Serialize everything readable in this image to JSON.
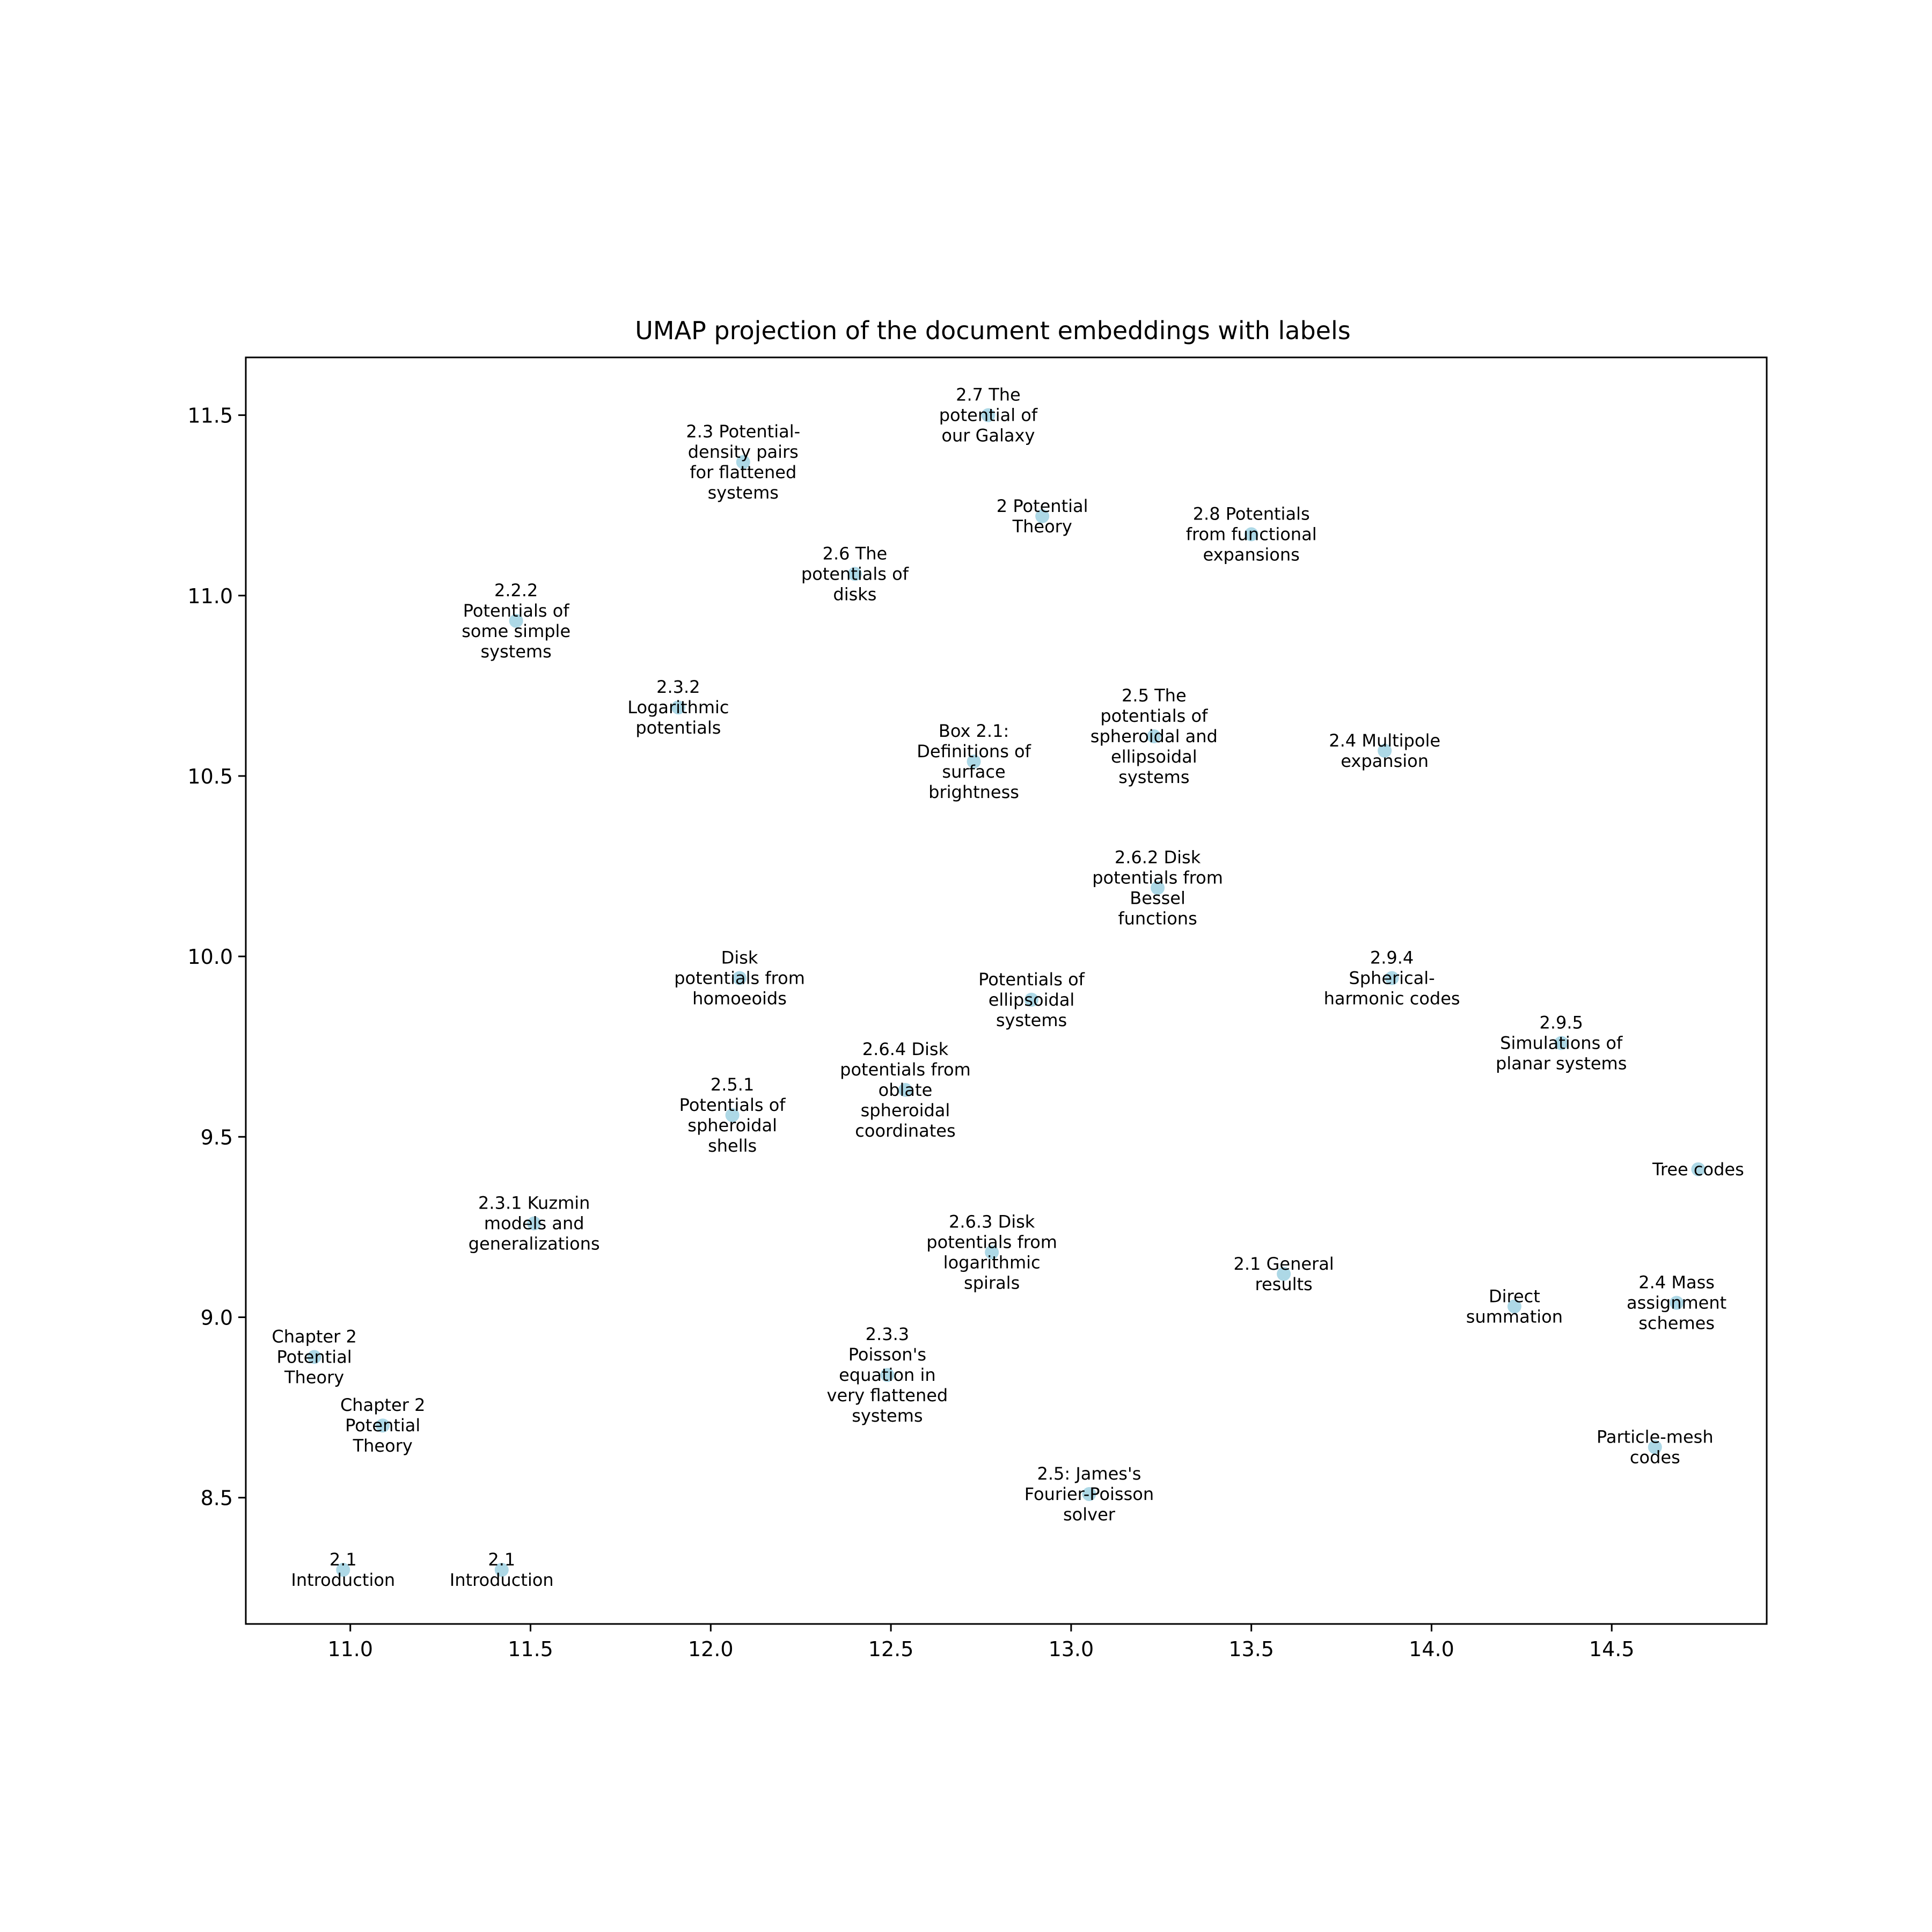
{
  "chart_data": {
    "type": "scatter",
    "title": "UMAP projection of the document embeddings with labels",
    "xlabel": "",
    "ylabel": "",
    "xlim": [
      10.71,
      14.93
    ],
    "ylim": [
      8.15,
      11.66
    ],
    "x_ticks": [
      11.0,
      11.5,
      12.0,
      12.5,
      13.0,
      13.5,
      14.0,
      14.5
    ],
    "y_ticks": [
      8.5,
      9.0,
      9.5,
      10.0,
      10.5,
      11.0,
      11.5
    ],
    "x_tick_labels": [
      "11.0",
      "11.5",
      "12.0",
      "12.5",
      "13.0",
      "13.5",
      "14.0",
      "14.5"
    ],
    "y_tick_labels": [
      "8.5",
      "9.0",
      "9.5",
      "10.0",
      "10.5",
      "11.0",
      "11.5"
    ],
    "grid": false,
    "point_color": "#add8e6",
    "points": [
      {
        "x": 12.77,
        "y": 11.5,
        "label": "2.7 The potential of our Galaxy",
        "lines": [
          "2.7 The",
          "potential of",
          "our Galaxy"
        ]
      },
      {
        "x": 12.09,
        "y": 11.37,
        "label": "2.3 Potential-density pairs for flattened systems",
        "lines": [
          "2.3 Potential-",
          "density pairs",
          "for flattened",
          "systems"
        ]
      },
      {
        "x": 12.92,
        "y": 11.22,
        "label": "2 Potential Theory",
        "lines": [
          "2 Potential",
          "Theory"
        ]
      },
      {
        "x": 13.5,
        "y": 11.17,
        "label": "2.8 Potentials from functional expansions",
        "lines": [
          "2.8 Potentials",
          "from functional",
          "expansions"
        ]
      },
      {
        "x": 12.4,
        "y": 11.06,
        "label": "2.6 The potentials of disks",
        "lines": [
          "2.6 The",
          "potentials of",
          "disks"
        ]
      },
      {
        "x": 11.46,
        "y": 10.93,
        "label": "2.2.2 Potentials of some simple systems",
        "lines": [
          "2.2.2",
          "Potentials of",
          "some simple",
          "systems"
        ]
      },
      {
        "x": 11.91,
        "y": 10.69,
        "label": "2.3.2 Logarithmic potentials",
        "lines": [
          "2.3.2",
          "Logarithmic",
          "potentials"
        ]
      },
      {
        "x": 13.23,
        "y": 10.61,
        "label": "2.5 The potentials of spheroidal and ellipsoidal systems",
        "lines": [
          "2.5 The",
          "potentials of",
          "spheroidal and",
          "ellipsoidal",
          "systems"
        ]
      },
      {
        "x": 13.87,
        "y": 10.57,
        "label": "2.4 Multipole expansion",
        "lines": [
          "2.4 Multipole",
          "expansion"
        ]
      },
      {
        "x": 12.73,
        "y": 10.54,
        "label": "Box 2.1: Definitions of surface brightness",
        "lines": [
          "Box 2.1:",
          "Definitions of",
          "surface",
          "brightness"
        ]
      },
      {
        "x": 13.24,
        "y": 10.19,
        "label": "2.6.2 Disk potentials from Bessel functions",
        "lines": [
          "2.6.2 Disk",
          "potentials from",
          "Bessel",
          "functions"
        ]
      },
      {
        "x": 12.08,
        "y": 9.94,
        "label": "Disk potentials from homoeoids",
        "lines": [
          "Disk",
          "potentials from",
          "homoeoids"
        ]
      },
      {
        "x": 13.89,
        "y": 9.94,
        "label": "2.9.4 Spherical-harmonic codes",
        "lines": [
          "2.9.4",
          "Spherical-",
          "harmonic codes"
        ]
      },
      {
        "x": 12.89,
        "y": 9.88,
        "label": "Potentials of ellipsoidal systems",
        "lines": [
          "Potentials of",
          "ellipsoidal",
          "systems"
        ]
      },
      {
        "x": 14.36,
        "y": 9.76,
        "label": "2.9.5 Simulations of planar systems",
        "lines": [
          "2.9.5",
          "Simulations of",
          "planar systems"
        ]
      },
      {
        "x": 12.54,
        "y": 9.63,
        "label": "2.6.4 Disk potentials from oblate spheroidal coordinates",
        "lines": [
          "2.6.4 Disk",
          "potentials from",
          "oblate",
          "spheroidal",
          "coordinates"
        ]
      },
      {
        "x": 12.06,
        "y": 9.56,
        "label": "2.5.1 Potentials of spheroidal shells",
        "lines": [
          "2.5.1",
          "Potentials of",
          "spheroidal",
          "shells"
        ]
      },
      {
        "x": 14.74,
        "y": 9.41,
        "label": "Tree codes",
        "lines": [
          "Tree codes"
        ]
      },
      {
        "x": 11.51,
        "y": 9.26,
        "label": "2.3.1 Kuzmin models and generalizations",
        "lines": [
          "2.3.1 Kuzmin",
          "models and",
          "generalizations"
        ]
      },
      {
        "x": 12.78,
        "y": 9.18,
        "label": "2.6.3 Disk potentials from logarithmic spirals",
        "lines": [
          "2.6.3 Disk",
          "potentials from",
          "logarithmic",
          "spirals"
        ]
      },
      {
        "x": 13.59,
        "y": 9.12,
        "label": "2.1 General results",
        "lines": [
          "2.1 General",
          "results"
        ]
      },
      {
        "x": 14.68,
        "y": 9.04,
        "label": "2.4 Mass assignment schemes",
        "lines": [
          "2.4 Mass",
          "assignment",
          "schemes"
        ]
      },
      {
        "x": 14.23,
        "y": 9.03,
        "label": "Direct summation",
        "lines": [
          "Direct",
          "summation"
        ]
      },
      {
        "x": 10.9,
        "y": 8.89,
        "label": "Chapter 2 Potential Theory",
        "lines": [
          "Chapter 2",
          "Potential",
          "Theory"
        ]
      },
      {
        "x": 12.49,
        "y": 8.84,
        "label": "2.3.3 Poisson's equation in very flattened systems",
        "lines": [
          "2.3.3",
          "Poisson's",
          "equation in",
          "very flattened",
          "systems"
        ]
      },
      {
        "x": 11.09,
        "y": 8.7,
        "label": "Chapter 2 Potential Theory",
        "lines": [
          "Chapter 2",
          "Potential",
          "Theory"
        ]
      },
      {
        "x": 14.62,
        "y": 8.64,
        "label": "Particle-mesh codes",
        "lines": [
          "Particle-mesh",
          "codes"
        ]
      },
      {
        "x": 13.05,
        "y": 8.51,
        "label": "2.5: James's Fourier-Poisson solver",
        "lines": [
          "2.5: James's",
          "Fourier-Poisson",
          "solver"
        ]
      },
      {
        "x": 10.98,
        "y": 8.3,
        "label": "2.1 Introduction",
        "lines": [
          "2.1",
          "Introduction"
        ]
      },
      {
        "x": 11.42,
        "y": 8.3,
        "label": "2.1 Introduction",
        "lines": [
          "2.1",
          "Introduction"
        ]
      }
    ]
  }
}
